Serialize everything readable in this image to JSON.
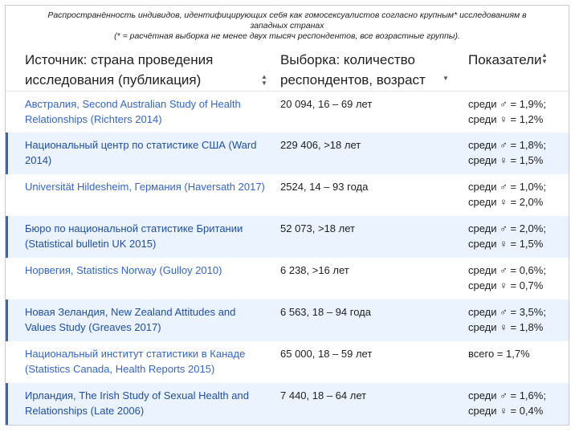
{
  "caption": {
    "line1": "Распространённость индивидов, идентифицирующих себя как гомосексуалистов согласно крупным* исследованиям в",
    "line2": "западных странах",
    "line3": "(* = расчётная выборка не менее двух тысяч респондентов, все возрастные группы)."
  },
  "headers": {
    "source": "Источник: страна проведения исследования (публикация)",
    "sample": "Выборка: количество респондентов, возраст",
    "indicators": "Показатели"
  },
  "rows": [
    {
      "source": "Австралия, Second Australian Study of Health Relationships (Richters 2014)",
      "sample": "20 094, 16 – 69 лет",
      "stat1": "среди ♂ = 1,9%;",
      "stat2": "среди ♀ = 1,2%"
    },
    {
      "source": "Национальный центр по статистике США (Ward 2014)",
      "sample": "229 406, >18 лет",
      "stat1": "среди ♂ = 1,8%;",
      "stat2": "среди ♀ = 1,5%"
    },
    {
      "source": "Universität Hildesheim, Германия (Haversath 2017)",
      "sample": "2524, 14 – 93 года",
      "stat1": "среди ♂ = 1,0%;",
      "stat2": "среди ♀ = 2,0%"
    },
    {
      "source": "Бюро по национальной статистике Британии (Statistical bulletin UK 2015)",
      "sample": "52 073, >18 лет",
      "stat1": "среди ♂ = 2,0%;",
      "stat2": "среди ♀ = 1,5%"
    },
    {
      "source": "Норвегия, Statistics Norway (Gulloy 2010)",
      "sample": "6 238, >16 лет",
      "stat1": "среди ♂ = 0,6%;",
      "stat2": "среди ♀ = 0,7%"
    },
    {
      "source": "Новая Зеландия, New Zealand Attitudes and Values Study (Greaves 2017)",
      "sample": "6 563, 18 – 94 года",
      "stat1": "среди ♂ = 3,5%;",
      "stat2": "среди ♀ = 1,8%"
    },
    {
      "source": "Национальный институт статистики в Канаде (Statistics Canada, Health Reports 2015)",
      "sample": "65 000, 18 – 59 лет",
      "stat1": "всего = 1,7%",
      "stat2": ""
    },
    {
      "source": "Ирландия, The Irish Study of Sexual Health and Relationships (Late 2006)",
      "sample": "7 440, 18 – 64 лет",
      "stat1": "среди ♂ = 1,6%;",
      "stat2": "среди ♀ = 0,4%"
    }
  ],
  "sort_icons": {
    "source": "sort-both-icon",
    "sample": "sort-desc-icon",
    "indicators": "sort-both-icon"
  }
}
